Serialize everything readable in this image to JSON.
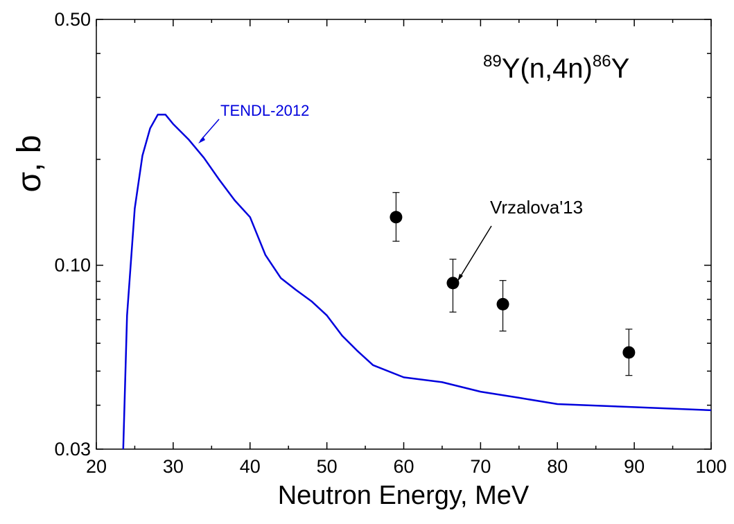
{
  "chart_data": {
    "type": "line",
    "title": "",
    "xlabel": "Neutron Energy,  MeV",
    "ylabel": "σ, b",
    "xlim": [
      20,
      100
    ],
    "ylim": [
      0.03,
      0.5
    ],
    "yscale": "log",
    "x_ticks": [
      20,
      30,
      40,
      50,
      60,
      70,
      80,
      90,
      100
    ],
    "x_tick_labels": [
      "20",
      "30",
      "40",
      "50",
      "60",
      "70",
      "80",
      "90",
      "100"
    ],
    "y_major_ticks": [
      0.03,
      0.1,
      0.5
    ],
    "y_tick_labels": [
      "0.03",
      "0.10",
      "0.50"
    ],
    "y_minor_ticks": [
      0.04,
      0.05,
      0.06,
      0.07,
      0.08,
      0.09,
      0.2,
      0.3,
      0.4
    ],
    "grid": false,
    "reaction_label": {
      "mass_target": "89",
      "target_core": "Y(n,4n)",
      "mass_product": "86",
      "product": "Y"
    },
    "series": [
      {
        "name": "TENDL-2012",
        "kind": "line",
        "color": "#0000dd",
        "x": [
          23.5,
          24.0,
          25.0,
          26.0,
          27.0,
          28.0,
          29.0,
          30.0,
          32.0,
          34.0,
          36.0,
          38.0,
          40.0,
          42.0,
          44.0,
          46.0,
          48.0,
          50.0,
          52.0,
          54.0,
          56.0,
          60.0,
          65.0,
          70.0,
          75.0,
          80.0,
          90.0,
          100.0
        ],
        "y": [
          0.03,
          0.072,
          0.145,
          0.205,
          0.245,
          0.268,
          0.268,
          0.252,
          0.228,
          0.202,
          0.175,
          0.153,
          0.137,
          0.107,
          0.092,
          0.085,
          0.079,
          0.072,
          0.063,
          0.057,
          0.052,
          0.048,
          0.0465,
          0.0437,
          0.042,
          0.0403,
          0.0395,
          0.0387
        ]
      },
      {
        "name": "Vrzalova'13",
        "kind": "scatter",
        "color": "#000000",
        "x": [
          59.0,
          66.4,
          72.9,
          89.3
        ],
        "y": [
          0.137,
          0.089,
          0.0775,
          0.0565
        ],
        "yerr_low": [
          0.117,
          0.0736,
          0.065,
          0.0486
        ],
        "yerr_high": [
          0.161,
          0.104,
          0.0905,
          0.0658
        ]
      }
    ]
  }
}
